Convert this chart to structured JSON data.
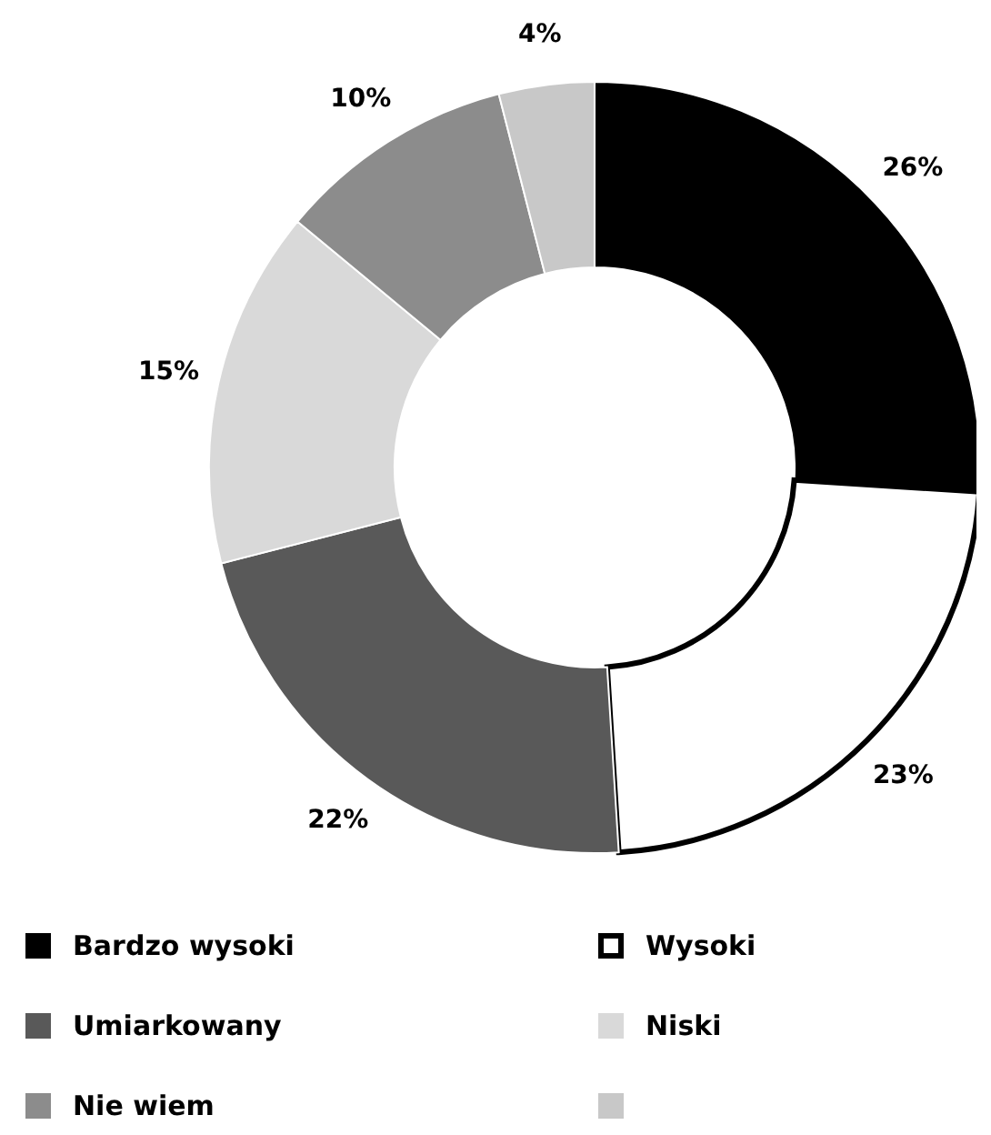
{
  "chart_data": {
    "type": "donut",
    "categories": [
      "Bardzo wysoki",
      "Wysoki",
      "Umiarkowany",
      "Niski",
      "Nie wiem",
      null
    ],
    "values": [
      26,
      23,
      22,
      15,
      10,
      4
    ],
    "colors": [
      "#000000",
      "#ffffff",
      "#595959",
      "#d9d9d9",
      "#8c8c8c",
      "#c8c8c8"
    ],
    "value_labels": [
      "26%",
      "23%",
      "22%",
      "15%",
      "10%",
      "4%"
    ],
    "legend": "bottom"
  }
}
